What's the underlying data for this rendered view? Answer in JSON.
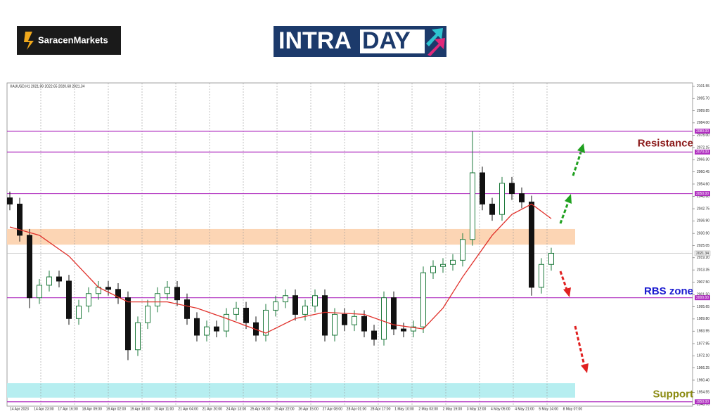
{
  "brand": "SaracenMarkets",
  "banner_left": "INTRA",
  "banner_right": "DAY",
  "chart_data": {
    "type": "candlestick",
    "header": "XAUUSD,H1  2021.99 2022.65 2020.68 2021.34",
    "ylim": [
      1947.9,
      2103.2
    ],
    "yticks": [
      2101.55,
      {
        "value": 2095.7,
        "label": "2095.70"
      },
      2089.85,
      {
        "value": 2084.0,
        "label": "2084.00"
      },
      {
        "value": 2078.0,
        "label": "2078.00"
      },
      2072.15,
      {
        "value": 2066.3,
        "label": "2066.30"
      },
      2060.45,
      {
        "value": 2054.6,
        "label": "2054.60"
      },
      {
        "value": 2048.6,
        "label": "2048.60"
      },
      2042.75,
      {
        "value": 2036.9,
        "label": "2036.90"
      },
      {
        "value": 2030.9,
        "label": "2030.90"
      },
      2025.05,
      {
        "value": 2019.2,
        "label": "2019.20"
      },
      2013.35,
      {
        "value": 2007.5,
        "label": "2007.50"
      },
      {
        "value": 2001.5,
        "label": "2001.50"
      },
      1995.65,
      {
        "value": 1989.8,
        "label": "1989.80"
      },
      1983.95,
      1977.95,
      {
        "value": 1972.1,
        "label": "1972.10"
      },
      1966.25,
      {
        "value": 1960.4,
        "label": "1960.40"
      },
      1954.55,
      {
        "value": 1948.7,
        "label": "1948.70"
      }
    ],
    "categories": [
      "14 Apr 2023",
      "14 Apr 23:00",
      "17 Apr 16:00",
      "18 Apr 09:00",
      "19 Apr 02:00",
      "19 Apr 18:00",
      "20 Apr 11:00",
      "21 Apr 04:00",
      "21 Apr 20:00",
      "24 Apr 13:00",
      "25 Apr 06:00",
      "25 Apr 22:00",
      "26 Apr 15:00",
      "27 Apr 08:00",
      "28 Apr 01:00",
      "28 Apr 17:00",
      "1 May 10:00",
      "2 May 03:00",
      "2 May 19:00",
      "3 May 12:00",
      "4 May 05:00",
      "4 May 21:00",
      "5 May 14:00",
      "8 May 07:00"
    ],
    "bull_color": "#1e7a3c",
    "bear_color": "#111111",
    "open": [
      2048,
      2045,
      2030,
      2000,
      2006,
      2010,
      2008,
      1990,
      1996,
      2002,
      2005,
      2004,
      2000,
      1975,
      1988,
      1996,
      2002,
      2005,
      1999,
      1990,
      1982,
      1986,
      1984,
      1992,
      1995,
      1988,
      1982,
      1994,
      1998,
      2001,
      1992,
      1996,
      2001,
      1982,
      1992,
      1987,
      1991,
      1984,
      1980,
      2000,
      1985,
      1984,
      1986,
      2012,
      2015,
      2016,
      2018,
      2028,
      2060,
      2045,
      2040,
      2055,
      2050,
      2046,
      2005,
      2016
    ],
    "high": [
      2051,
      2048,
      2033,
      2009,
      2013,
      2013,
      2011,
      1999,
      2005,
      2008,
      2008,
      2007,
      2003,
      1991,
      1999,
      2005,
      2008,
      2008,
      2002,
      1993,
      1989,
      1989,
      1995,
      1998,
      1998,
      1991,
      1997,
      2001,
      2004,
      2004,
      1999,
      2004,
      2004,
      1995,
      1995,
      1994,
      1994,
      1987,
      2003,
      2003,
      1988,
      1989,
      2015,
      2018,
      2019,
      2021,
      2031,
      2080,
      2063,
      2048,
      2058,
      2058,
      2053,
      2049,
      2019,
      2024
    ],
    "low": [
      2042,
      2027,
      1995,
      1997,
      2003,
      2005,
      1987,
      1987,
      1993,
      1999,
      2001,
      1997,
      1970,
      1972,
      1985,
      1993,
      1999,
      1996,
      1987,
      1979,
      1979,
      1981,
      1981,
      1989,
      1985,
      1979,
      1979,
      1991,
      1995,
      1989,
      1989,
      1993,
      1979,
      1979,
      1984,
      1984,
      1981,
      1977,
      1977,
      1982,
      1981,
      1981,
      1983,
      2009,
      2012,
      2013,
      2015,
      2025,
      2042,
      2037,
      2037,
      2047,
      2043,
      2001,
      2002,
      2013
    ],
    "close": [
      2045,
      2030,
      2000,
      2006,
      2010,
      2008,
      1990,
      1996,
      2002,
      2005,
      2004,
      2000,
      1975,
      1988,
      1996,
      2002,
      2005,
      1999,
      1990,
      1982,
      1986,
      1984,
      1992,
      1995,
      1988,
      1982,
      1994,
      1998,
      2001,
      1992,
      1996,
      2001,
      1982,
      1992,
      1987,
      1991,
      1984,
      1980,
      2000,
      1985,
      1984,
      1986,
      2012,
      2015,
      2016,
      2018,
      2028,
      2060,
      2045,
      2040,
      2055,
      2050,
      2046,
      2005,
      2016,
      2021.34
    ],
    "ma": {
      "color": "#e0302a",
      "x": [
        0,
        3,
        6,
        9,
        12,
        16,
        19,
        22,
        26,
        29,
        32,
        36,
        39,
        42,
        44,
        46,
        49,
        51,
        53,
        55
      ],
      "values": [
        2034,
        2030,
        2020,
        2005,
        1998,
        1998,
        1995,
        1990,
        1983,
        1990,
        1993,
        1992,
        1987,
        1985,
        1995,
        2010,
        2030,
        2040,
        2045,
        2038
      ]
    },
    "levels": [
      {
        "value": 2080,
        "label": "2080.00"
      },
      {
        "value": 2070,
        "label": "2070.00"
      },
      {
        "value": 2050,
        "label": "2050.00"
      },
      {
        "value": 2000,
        "label": "2000.00"
      },
      {
        "value": 1950,
        "label": "1950.00"
      }
    ],
    "level_color": "#b030c0",
    "current": {
      "value": 2021.34,
      "label": "2021.34"
    },
    "zones": [
      {
        "from": 2025.5,
        "to": 2033,
        "color": "#fcd5b4"
      },
      {
        "from": 1952,
        "to": 1959,
        "color": "#b6eef0"
      }
    ],
    "annotations": [
      {
        "text": "Resistance",
        "at": 2074,
        "color": "#8b1a1a"
      },
      {
        "text": "RBS zone",
        "at": 2003,
        "color": "#1a1ad0"
      },
      {
        "text": "Support",
        "at": 1953.5,
        "color": "#8a8a10"
      }
    ]
  }
}
